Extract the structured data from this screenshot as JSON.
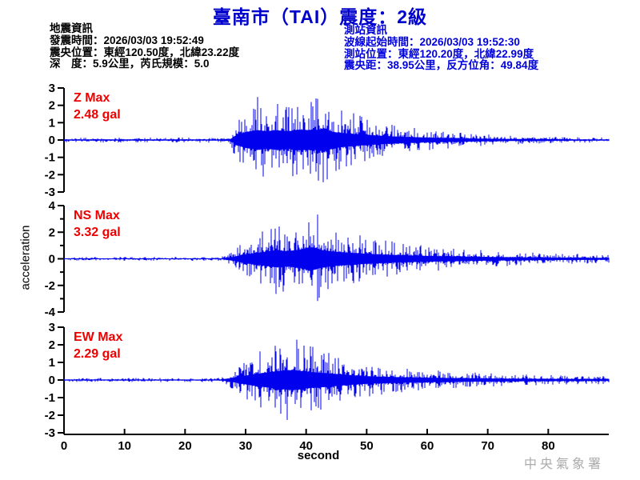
{
  "title": "臺南市（TAI）震度：2級",
  "event_info": {
    "heading": "地震資訊",
    "lines": [
      "發震時間：2026/03/03 19:52:49",
      "震央位置：東經120.50度，北緯23.22度",
      "深　度：5.9公里，芮氏規模：5.0"
    ]
  },
  "station_info": {
    "heading": "測站資訊",
    "lines": [
      "波線起始時間：2026/03/03 19:52:30",
      "測站位置：東經120.20度，北緯22.99度",
      "震央距：38.95公里，反方位角：49.84度"
    ]
  },
  "watermark": "中央氣象署",
  "colors": {
    "title_blue": "#0000CC",
    "info_blue": "#0000DD",
    "trace_blue": "#0000EE",
    "label_red": "#EE0000",
    "axis_black": "#000000",
    "watermark_gray": "#ABABAB"
  },
  "chart_data": {
    "type": "line",
    "xlabel": "second",
    "ylabel": "acceleration",
    "x_range": [
      0,
      90
    ],
    "x_ticks": [
      0,
      10,
      20,
      30,
      40,
      50,
      60,
      70,
      80
    ],
    "traces": [
      {
        "name": "Z",
        "label": "Z Max",
        "max_label": "2.48 gal",
        "max_gal": 2.48,
        "unit": "gal",
        "ylim": [
          -3,
          3
        ],
        "yticks": [
          3,
          2,
          1,
          0,
          -1,
          -2,
          -3
        ],
        "minor_yticks": [],
        "seed": 101,
        "envelope": [
          [
            0,
            0.07
          ],
          [
            26,
            0.08
          ],
          [
            27.5,
            0.12
          ],
          [
            28.5,
            0.65
          ],
          [
            30,
            1.0
          ],
          [
            32,
            1.25
          ],
          [
            33.5,
            1.1
          ],
          [
            35,
            1.25
          ],
          [
            37,
            1.1
          ],
          [
            39,
            1.3
          ],
          [
            41,
            1.2
          ],
          [
            43,
            1.45
          ],
          [
            44.5,
            1.0
          ],
          [
            46,
            0.9
          ],
          [
            48,
            0.75
          ],
          [
            50,
            0.65
          ],
          [
            53,
            0.5
          ],
          [
            56,
            0.4
          ],
          [
            60,
            0.3
          ],
          [
            65,
            0.22
          ],
          [
            70,
            0.16
          ],
          [
            75,
            0.12
          ],
          [
            80,
            0.1
          ],
          [
            85,
            0.08
          ],
          [
            90,
            0.07
          ]
        ]
      },
      {
        "name": "NS",
        "label": "NS Max",
        "max_label": "3.32 gal",
        "max_gal": 3.32,
        "unit": "gal",
        "ylim": [
          -4,
          4
        ],
        "yticks": [
          4,
          2,
          0,
          -2,
          -4
        ],
        "minor_yticks": [
          3,
          1,
          -1,
          -3
        ],
        "seed": 202,
        "envelope": [
          [
            0,
            0.05
          ],
          [
            26,
            0.055
          ],
          [
            28,
            0.25
          ],
          [
            29.5,
            0.5
          ],
          [
            31,
            0.65
          ],
          [
            33,
            0.85
          ],
          [
            35,
            1.05
          ],
          [
            37,
            0.95
          ],
          [
            39,
            1.15
          ],
          [
            41,
            1.45
          ],
          [
            42.5,
            1.1
          ],
          [
            44,
            0.95
          ],
          [
            46,
            0.8
          ],
          [
            48,
            0.72
          ],
          [
            50,
            0.62
          ],
          [
            53,
            0.52
          ],
          [
            56,
            0.44
          ],
          [
            60,
            0.36
          ],
          [
            65,
            0.29
          ],
          [
            70,
            0.23
          ],
          [
            75,
            0.19
          ],
          [
            80,
            0.16
          ],
          [
            85,
            0.14
          ],
          [
            90,
            0.12
          ]
        ]
      },
      {
        "name": "EW",
        "label": "EW Max",
        "max_label": "2.29 gal",
        "max_gal": 2.29,
        "unit": "gal",
        "ylim": [
          -3,
          3
        ],
        "yticks": [
          3,
          2,
          1,
          0,
          -1,
          -2,
          -3
        ],
        "minor_yticks": [],
        "seed": 303,
        "envelope": [
          [
            0,
            0.06
          ],
          [
            26,
            0.065
          ],
          [
            28,
            0.3
          ],
          [
            30,
            0.6
          ],
          [
            32,
            0.85
          ],
          [
            34,
            1.05
          ],
          [
            36,
            1.25
          ],
          [
            38,
            1.35
          ],
          [
            40,
            1.15
          ],
          [
            42,
            1.0
          ],
          [
            44,
            0.9
          ],
          [
            46,
            0.75
          ],
          [
            48,
            0.62
          ],
          [
            50,
            0.52
          ],
          [
            53,
            0.43
          ],
          [
            56,
            0.37
          ],
          [
            60,
            0.31
          ],
          [
            65,
            0.26
          ],
          [
            70,
            0.21
          ],
          [
            75,
            0.18
          ],
          [
            80,
            0.16
          ],
          [
            85,
            0.14
          ],
          [
            90,
            0.13
          ]
        ]
      }
    ]
  }
}
